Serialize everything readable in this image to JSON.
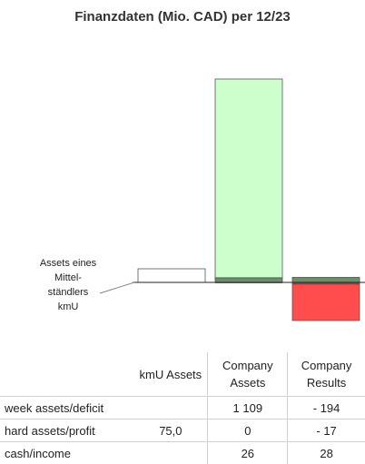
{
  "chart_data": {
    "type": "bar",
    "title": "Finanzdaten (Mio. CAD) per 12/23",
    "categories": [
      "kmU Assets",
      "Company Assets",
      "Company Results"
    ],
    "annotation": "Assets eines Mittel-ständlers kmU",
    "bars": [
      {
        "category": "kmU Assets",
        "segments": [
          {
            "name": "hard assets/profit",
            "value": 75.0,
            "color": "#ffffff"
          }
        ]
      },
      {
        "category": "Company Assets",
        "segments": [
          {
            "name": "hard assets/profit",
            "value": 0,
            "color": "#5a9a5a"
          },
          {
            "name": "cash/income",
            "value": 26,
            "color": "#6b8f6b"
          },
          {
            "name": "week assets/deficit",
            "value": 1109,
            "color": "#ccffcc"
          }
        ]
      },
      {
        "category": "Company Results",
        "segments": [
          {
            "name": "cash/income",
            "value": 28,
            "color": "#6b8f6b"
          },
          {
            "name": "hard assets/profit",
            "value": -17,
            "color": "#c0392b"
          },
          {
            "name": "week assets/deficit",
            "value": -194,
            "color": "#ff4d4d"
          }
        ]
      }
    ],
    "grid": false,
    "legend": "none"
  },
  "table": {
    "headers": [
      "",
      "kmU Assets",
      "Company\nAssets",
      "Company\nResults"
    ],
    "rows": [
      {
        "label": "week assets/deficit",
        "kmu": "",
        "assets": "1 109",
        "results": "- 194"
      },
      {
        "label": "hard assets/profit",
        "kmu": "75,0",
        "assets": "0",
        "results": "- 17"
      },
      {
        "label": "cash/income",
        "kmu": "",
        "assets": "26",
        "results": "28"
      }
    ]
  }
}
